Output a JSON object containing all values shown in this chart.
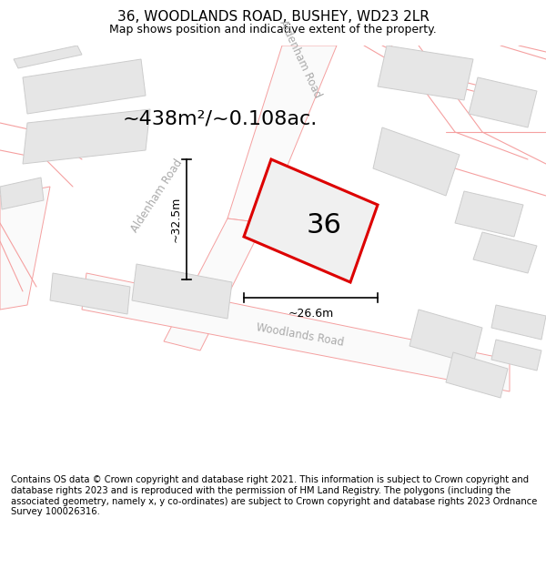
{
  "title": "36, WOODLANDS ROAD, BUSHEY, WD23 2LR",
  "subtitle": "Map shows position and indicative extent of the property.",
  "footer": "Contains OS data © Crown copyright and database right 2021. This information is subject to Crown copyright and database rights 2023 and is reproduced with the permission of HM Land Registry. The polygons (including the associated geometry, namely x, y co-ordinates) are subject to Crown copyright and database rights 2023 Ordnance Survey 100026316.",
  "area_text": "~438m²/~0.108ac.",
  "width_label": "~26.6m",
  "height_label": "~32.5m",
  "number_label": "36",
  "road_pink": "#f5a0a0",
  "road_label_color": "#aaaaaa",
  "building_fill": "#e6e6e6",
  "building_edge": "#cccccc",
  "red_outline": "#dd0000",
  "plot_fill": "#f0f0f0",
  "bg_color": "#ffffff",
  "dim_color": "#000000",
  "title_fontsize": 11,
  "subtitle_fontsize": 9,
  "area_fontsize": 16,
  "number_fontsize": 22,
  "footer_fontsize": 7.2,
  "road_label_fontsize": 8.5
}
